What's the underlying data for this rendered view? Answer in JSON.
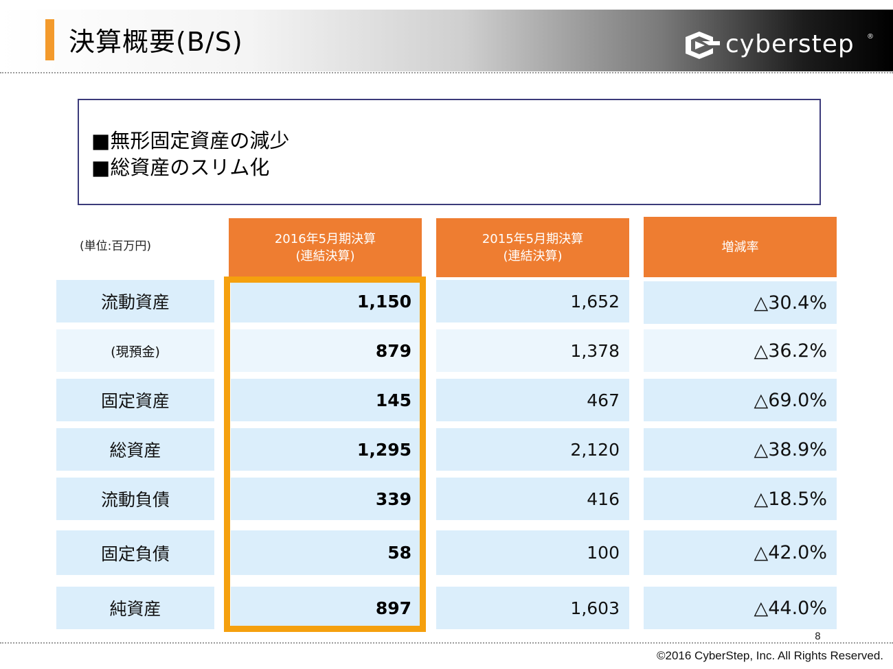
{
  "header": {
    "title": "決算概要(B/S)",
    "logo_text": "cyberstep",
    "logo_mark": "®"
  },
  "summary": {
    "lines": [
      "■無形固定資産の減少",
      "■総資産のスリム化"
    ]
  },
  "table": {
    "unit_label": "(単位:百万円)",
    "columns": [
      {
        "line1": "2016年5月期決算",
        "line2": "(連結決算)"
      },
      {
        "line1": "2015年5月期決算",
        "line2": "(連結決算)"
      },
      {
        "line1": "増減率",
        "line2": ""
      }
    ],
    "rows": [
      {
        "label": "流動資産",
        "fy2016": "1,150",
        "fy2015": "1,652",
        "rate": "△30.4%"
      },
      {
        "label": "(現預金)",
        "fy2016": "879",
        "fy2015": "1,378",
        "rate": "△36.2%"
      },
      {
        "label": "固定資産",
        "fy2016": "145",
        "fy2015": "467",
        "rate": "△69.0%"
      },
      {
        "label": "総資産",
        "fy2016": "1,295",
        "fy2015": "2,120",
        "rate": "△38.9%"
      },
      {
        "label": "流動負債",
        "fy2016": "339",
        "fy2015": "416",
        "rate": "△18.5%"
      },
      {
        "label": "固定負債",
        "fy2016": "58",
        "fy2015": "100",
        "rate": "△42.0%"
      },
      {
        "label": "純資産",
        "fy2016": "897",
        "fy2015": "1,603",
        "rate": "△44.0%"
      }
    ]
  },
  "footer": {
    "page_number": "8",
    "copyright": "©2016 CyberStep, Inc. All Rights Reserved."
  },
  "colors": {
    "accent_orange": "#ee7d31",
    "highlight_orange": "#f5a00e",
    "row_blue": "#dbeefb",
    "row_light_blue": "#ecf6fd",
    "box_border": "#3b3a7a"
  },
  "icons": [
    "cyberstep-logo-icon"
  ]
}
